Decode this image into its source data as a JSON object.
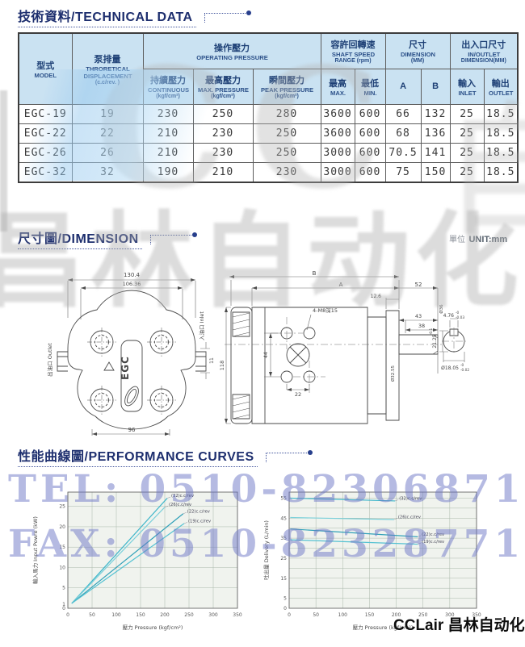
{
  "sections": {
    "technical": {
      "title": "技術資料/TECHNICAL DATA"
    },
    "dimension": {
      "title": "尺寸圖/DIMENSION",
      "unit_zh": "單位",
      "unit_en": "UNIT:mm"
    },
    "performance": {
      "title": "性能曲線圖/PERFORMANCE CURVES"
    }
  },
  "table": {
    "header": {
      "model_zh": "型式",
      "model_en": "MODEL",
      "disp_zh": "泵排量",
      "disp_en1": "THRORETICAL",
      "disp_en2": "DISPLACEMENT",
      "disp_unit": "(c.c/rev. )",
      "op_zh": "操作壓力",
      "op_en": "OPERATING PRESSURE",
      "cont_zh": "持續壓力",
      "cont_en": "CONTINUOUS",
      "cont_unit": "(kgf/cm²)",
      "maxp_zh": "最高壓力",
      "maxp_en": "MAX. PRESSURE",
      "maxp_unit": "(kgf/cm²)",
      "peak_zh": "瞬間壓力",
      "peak_en": "PEAK PRESSURE",
      "peak_unit": "(kgf/cm²)",
      "speed_zh": "容許回轉速",
      "speed_en": "SHAFT SPEED",
      "speed_unit": "RANGE (rpm)",
      "max_zh": "最高",
      "max_en": "MAX.",
      "min_zh": "最低",
      "min_en": "MIN.",
      "dim_zh": "尺寸",
      "dim_en": "DIMENSION",
      "dim_unit": "(MM)",
      "a": "A",
      "b": "B",
      "inout_zh": "出入口尺寸",
      "inout_en": "IN/OUTLET",
      "inout_unit": "DIMENSION(MM)",
      "inlet_zh": "輸入",
      "inlet_en": "INLET",
      "outlet_zh": "輸出",
      "outlet_en": "OUTLET"
    },
    "rows": [
      {
        "model": "EGC-19",
        "disp": "19",
        "cont": "230",
        "maxp": "250",
        "peak": "280",
        "smax": "3600",
        "smin": "600",
        "a": "66",
        "b": "132",
        "inlet": "25",
        "outlet": "18.5"
      },
      {
        "model": "EGC-22",
        "disp": "22",
        "cont": "210",
        "maxp": "230",
        "peak": "250",
        "smax": "3600",
        "smin": "600",
        "a": "68",
        "b": "136",
        "inlet": "25",
        "outlet": "18.5"
      },
      {
        "model": "EGC-26",
        "disp": "26",
        "cont": "210",
        "maxp": "230",
        "peak": "250",
        "smax": "3000",
        "smin": "600",
        "a": "70.5",
        "b": "141",
        "inlet": "25",
        "outlet": "18.5"
      },
      {
        "model": "EGC-32",
        "disp": "32",
        "cont": "190",
        "maxp": "210",
        "peak": "230",
        "smax": "3000",
        "smin": "600",
        "a": "75",
        "b": "150",
        "inlet": "25",
        "outlet": "18.5"
      }
    ]
  },
  "drawings": {
    "front": {
      "dim_width_outer": "130.4",
      "dim_width_inner": "106.36",
      "dim_bottom": "96",
      "dim_port": "11",
      "label_outlet": "出油口 Outlet",
      "label_inlet": "入油口 Inlet",
      "label_model": "EGC"
    },
    "side": {
      "dim_b": "B",
      "dim_a": "A",
      "dim_52": "52",
      "dim_12_6": "12.6",
      "dim_43": "43",
      "dim_38": "38",
      "dim_118": "118",
      "dim_44": "44",
      "dim_22": "22",
      "bolt_note": "4-M8深15",
      "dia_shaft_base": "Ø32.55",
      "dia_pilot": "Ø36",
      "key_width": "4.76",
      "key_width_tol_top": "-0",
      "key_width_tol_bot": "-0.03",
      "key_height": "21.25",
      "key_height_tol": "-0.1",
      "shaft_dia": "Ø18.05",
      "shaft_dia_tol_top": "-0",
      "shaft_dia_tol_bot": "-0.02"
    }
  },
  "chart_data": [
    {
      "type": "line",
      "xlabel": "壓力 Pressure (kgf/cm²)",
      "ylabel": "輸入馬力 Input Powre (kW)",
      "xlim": [
        0,
        350
      ],
      "ylim": [
        0,
        28.5
      ],
      "xticks": [
        0,
        50,
        100,
        150,
        200,
        250,
        300,
        350
      ],
      "yticks": [
        0,
        1,
        5,
        10,
        15,
        20,
        25
      ],
      "ygrid": [
        5,
        10,
        15,
        20,
        25
      ],
      "grid": true,
      "legend_position": "line-end",
      "series": [
        {
          "name": "(32)c.c/rev",
          "color": "#3fb6ca",
          "points": [
            [
              8,
              1.2
            ],
            [
              205,
              27.0
            ]
          ]
        },
        {
          "name": "(26)c.c/rev",
          "color": "#7bd0da",
          "points": [
            [
              8,
              1.2
            ],
            [
              200,
              24.8
            ]
          ]
        },
        {
          "name": "(22)c.c/rev",
          "color": "#2fa0b8",
          "points": [
            [
              8,
              1.2
            ],
            [
              238,
              23.2
            ]
          ]
        },
        {
          "name": "(19)c.c/rev",
          "color": "#55c2d2",
          "points": [
            [
              8,
              1.2
            ],
            [
              240,
              20.8
            ]
          ]
        }
      ]
    },
    {
      "type": "line",
      "xlabel": "壓力 Pressure (kgf/cm²)",
      "ylabel": "吐出量 Delivery (L/min)",
      "xlim": [
        0,
        350
      ],
      "ylim": [
        0,
        58
      ],
      "xticks": [
        0,
        50,
        100,
        150,
        200,
        250,
        300,
        350
      ],
      "yticks": [
        0,
        5,
        15,
        25,
        35,
        45,
        55
      ],
      "ygrid": [
        5,
        10,
        15,
        20,
        25,
        30,
        35,
        40,
        45,
        50,
        55
      ],
      "grid": true,
      "legend_position": "line-end",
      "series": [
        {
          "name": "(32)c.c/rev",
          "color": "#3fb6ca",
          "points": [
            [
              2,
              55.0
            ],
            [
              198,
              53.6
            ]
          ]
        },
        {
          "name": "(26)c.c/rev",
          "color": "#7bd0da",
          "points": [
            [
              2,
              45.3
            ],
            [
              196,
              44.3
            ]
          ]
        },
        {
          "name": "(22)c.c/rev",
          "color": "#2fa0b8",
          "points": [
            [
              2,
              39.6
            ],
            [
              240,
              35.7
            ]
          ]
        },
        {
          "name": "(19)c.c/rev",
          "color": "#55c2d2",
          "points": [
            [
              2,
              34.2
            ],
            [
              240,
              32.0
            ]
          ]
        }
      ]
    }
  ],
  "watermarks": {
    "tel": "TEL: 0510-82306871",
    "fax": "FAX: 0510-82328771",
    "cc": "CC",
    "cjk_right": "自",
    "cjk_band": "昌林自动化",
    "brand": "CCLair 昌林自动化"
  }
}
